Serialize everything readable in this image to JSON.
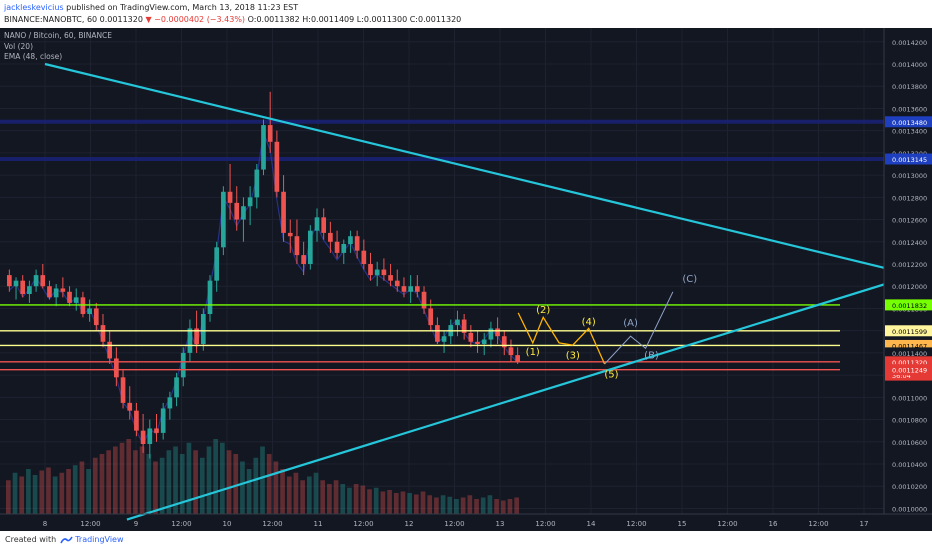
{
  "header": {
    "author": "jackleskevicius",
    "published": "published on TradingView.com, March 13, 2018 11:23 EST",
    "symbol": "BINANCE:NANOBTC, 60",
    "change": "▼ −0.0000402 (−3.43%)",
    "last": "0.0011320",
    "ohlc": "O:0.0011382 H:0.0011409 L:0.0011300 C:0.0011320"
  },
  "legend": {
    "pair": "NANO / Bitcoin, 60, BINANCE",
    "vol": "Vol (20)",
    "ema": "EMA (48, close)"
  },
  "footer": {
    "created": "Created with",
    "brand": "TradingView"
  },
  "colors": {
    "background": "#131722",
    "up": "#26a69a",
    "down": "#ef5350",
    "triangle": "#26c6da",
    "green_level": "#76ff03",
    "yellow_level": "#ffff8d",
    "red_level": "#ef5350",
    "blue_level": "#1a237e",
    "ema": "#283593",
    "wave_label": "#ffeb3b",
    "abc_label": "#90a4c8"
  },
  "chart_data": {
    "type": "candlestick",
    "x_axis_labels": [
      "8",
      "12:00",
      "9",
      "12:00",
      "10",
      "12:00",
      "11",
      "12:00",
      "12",
      "12:00",
      "13",
      "12:00",
      "14",
      "12:00",
      "15",
      "12:00",
      "16",
      "12:00",
      "17"
    ],
    "y_axis_labels": [
      "0.0014200",
      "0.0014000",
      "0.0013800",
      "0.0013600",
      "0.0013400",
      "0.0013200",
      "0.0013000",
      "0.0012800",
      "0.0012600",
      "0.0012400",
      "0.0012200",
      "0.0012000",
      "0.0011800",
      "0.0011600",
      "0.0011400",
      "0.0011200",
      "0.0011000",
      "0.0010800",
      "0.0010600",
      "0.0010400",
      "0.0010200",
      "0.0010000"
    ],
    "ylim": [
      0.000995,
      0.001427
    ],
    "price_levels": [
      {
        "label": "0.0013480",
        "value": 0.001348,
        "role": "blue"
      },
      {
        "label": "0.0013145",
        "value": 0.0013145,
        "role": "blue"
      },
      {
        "label": "0.0011832",
        "value": 0.0011832,
        "role": "green"
      },
      {
        "label": "0.0011599",
        "value": 0.0011599,
        "role": "yellow"
      },
      {
        "label": "0.0011467",
        "value": 0.0011467,
        "role": "orange"
      },
      {
        "label": "0.0011400",
        "value": 0.00114,
        "role": "plain"
      },
      {
        "label": "0.0011320",
        "value": 0.001132,
        "role": "red"
      },
      {
        "label": "36:04",
        "value": 0.00112,
        "role": "timer"
      },
      {
        "label": "0.0011249",
        "value": 0.0011249,
        "role": "red"
      }
    ],
    "triangle": {
      "upper": [
        [
          0.0,
          0.0014
        ],
        [
          19.1,
          0.00121
        ]
      ],
      "lower": [
        [
          1.8,
          0.00099
        ],
        [
          19.1,
          0.00121
        ]
      ]
    },
    "wave_labels": [
      {
        "text": "(1)",
        "x": 10.72,
        "y": 0.001138
      },
      {
        "text": "(2)",
        "x": 10.95,
        "y": 0.001176
      },
      {
        "text": "(3)",
        "x": 11.6,
        "y": 0.001135
      },
      {
        "text": "(4)",
        "x": 11.95,
        "y": 0.001165
      },
      {
        "text": "(5)",
        "x": 12.45,
        "y": 0.001118
      },
      {
        "text": "(A)",
        "x": 12.87,
        "y": 0.001164
      },
      {
        "text": "(B)",
        "x": 13.33,
        "y": 0.001135
      },
      {
        "text": "(C)",
        "x": 14.17,
        "y": 0.001204
      }
    ],
    "wave_path": [
      [
        10.4,
        0.001176
      ],
      [
        10.72,
        0.001149
      ],
      [
        10.95,
        0.001172
      ],
      [
        11.3,
        0.001149
      ],
      [
        11.6,
        0.001147
      ],
      [
        11.95,
        0.001162
      ],
      [
        12.3,
        0.00113
      ]
    ],
    "projection_path": [
      [
        12.3,
        0.00113
      ],
      [
        12.87,
        0.001155
      ],
      [
        13.2,
        0.001144
      ],
      [
        13.8,
        0.001195
      ]
    ],
    "ohlc": [
      [
        0.00121,
        0.001215,
        0.001195,
        0.0012
      ],
      [
        0.0012,
        0.001208,
        0.001188,
        0.001205
      ],
      [
        0.001205,
        0.00121,
        0.00119,
        0.001193
      ],
      [
        0.001193,
        0.001205,
        0.001185,
        0.0012
      ],
      [
        0.0012,
        0.001215,
        0.001195,
        0.00121
      ],
      [
        0.00121,
        0.00122,
        0.001198,
        0.0012
      ],
      [
        0.0012,
        0.001205,
        0.001188,
        0.00119
      ],
      [
        0.00119,
        0.001202,
        0.001182,
        0.001198
      ],
      [
        0.001198,
        0.001208,
        0.00119,
        0.001195
      ],
      [
        0.001195,
        0.0012,
        0.001182,
        0.001185
      ],
      [
        0.001185,
        0.001198,
        0.001178,
        0.00119
      ],
      [
        0.00119,
        0.001195,
        0.001172,
        0.001175
      ],
      [
        0.001175,
        0.001188,
        0.001168,
        0.00118
      ],
      [
        0.00118,
        0.001185,
        0.00116,
        0.001165
      ],
      [
        0.001165,
        0.001175,
        0.001145,
        0.00115
      ],
      [
        0.00115,
        0.00116,
        0.00113,
        0.001135
      ],
      [
        0.001135,
        0.001145,
        0.00111,
        0.001118
      ],
      [
        0.001118,
        0.001125,
        0.00109,
        0.001095
      ],
      [
        0.001095,
        0.00111,
        0.00108,
        0.001088
      ],
      [
        0.001088,
        0.001095,
        0.001065,
        0.00107
      ],
      [
        0.00107,
        0.001085,
        0.00105,
        0.001058
      ],
      [
        0.001058,
        0.00108,
        0.001045,
        0.001072
      ],
      [
        0.001072,
        0.001085,
        0.00106,
        0.001068
      ],
      [
        0.001068,
        0.001095,
        0.001062,
        0.00109
      ],
      [
        0.00109,
        0.001105,
        0.00108,
        0.0011
      ],
      [
        0.0011,
        0.001122,
        0.001092,
        0.001118
      ],
      [
        0.001118,
        0.001145,
        0.00111,
        0.00114
      ],
      [
        0.00114,
        0.00117,
        0.001132,
        0.001162
      ],
      [
        0.001162,
        0.001178,
        0.00114,
        0.001148
      ],
      [
        0.001148,
        0.00118,
        0.001142,
        0.001175
      ],
      [
        0.001175,
        0.00121,
        0.001168,
        0.001205
      ],
      [
        0.001205,
        0.00124,
        0.001195,
        0.001235
      ],
      [
        0.001235,
        0.00129,
        0.001228,
        0.001285
      ],
      [
        0.001285,
        0.00131,
        0.00126,
        0.001275
      ],
      [
        0.001275,
        0.00129,
        0.00125,
        0.00126
      ],
      [
        0.00126,
        0.00128,
        0.00124,
        0.001272
      ],
      [
        0.001272,
        0.00129,
        0.001255,
        0.00128
      ],
      [
        0.00128,
        0.00131,
        0.00127,
        0.001305
      ],
      [
        0.001305,
        0.00135,
        0.0013,
        0.001345
      ],
      [
        0.001345,
        0.001375,
        0.00132,
        0.00133
      ],
      [
        0.00133,
        0.00134,
        0.00128,
        0.001285
      ],
      [
        0.001285,
        0.0013,
        0.00124,
        0.001248
      ],
      [
        0.001248,
        0.00126,
        0.00123,
        0.001245
      ],
      [
        0.001245,
        0.00126,
        0.00122,
        0.001228
      ],
      [
        0.001228,
        0.00124,
        0.00121,
        0.00122
      ],
      [
        0.00122,
        0.001255,
        0.001215,
        0.00125
      ],
      [
        0.00125,
        0.00127,
        0.00124,
        0.001262
      ],
      [
        0.001262,
        0.00127,
        0.001242,
        0.001248
      ],
      [
        0.001248,
        0.001258,
        0.00123,
        0.00124
      ],
      [
        0.00124,
        0.00125,
        0.001225,
        0.00123
      ],
      [
        0.00123,
        0.001242,
        0.00122,
        0.001238
      ],
      [
        0.001238,
        0.00125,
        0.00123,
        0.001245
      ],
      [
        0.001245,
        0.00125,
        0.001225,
        0.001232
      ],
      [
        0.001232,
        0.001242,
        0.001215,
        0.00122
      ],
      [
        0.00122,
        0.00123,
        0.001205,
        0.00121
      ],
      [
        0.00121,
        0.001222,
        0.0012,
        0.001215
      ],
      [
        0.001215,
        0.001225,
        0.001205,
        0.00121
      ],
      [
        0.00121,
        0.00122,
        0.0012,
        0.001205
      ],
      [
        0.001205,
        0.001215,
        0.001195,
        0.0012
      ],
      [
        0.0012,
        0.001208,
        0.00119,
        0.001195
      ],
      [
        0.001195,
        0.00121,
        0.001185,
        0.0012
      ],
      [
        0.0012,
        0.00121,
        0.00119,
        0.001195
      ],
      [
        0.001195,
        0.0012,
        0.001175,
        0.00118
      ],
      [
        0.00118,
        0.001188,
        0.00116,
        0.001165
      ],
      [
        0.001165,
        0.001172,
        0.001148,
        0.00115
      ],
      [
        0.00115,
        0.00116,
        0.00114,
        0.001155
      ],
      [
        0.001155,
        0.00117,
        0.001148,
        0.001165
      ],
      [
        0.001165,
        0.001178,
        0.001155,
        0.00117
      ],
      [
        0.00117,
        0.001175,
        0.001152,
        0.001158
      ],
      [
        0.001158,
        0.001165,
        0.001145,
        0.00115
      ],
      [
        0.00115,
        0.00116,
        0.00114,
        0.001148
      ],
      [
        0.001148,
        0.001158,
        0.001138,
        0.001152
      ],
      [
        0.001152,
        0.001168,
        0.001145,
        0.001162
      ],
      [
        0.001162,
        0.001172,
        0.001148,
        0.001155
      ],
      [
        0.001155,
        0.00116,
        0.001138,
        0.001145
      ],
      [
        0.001145,
        0.001152,
        0.001132,
        0.001138
      ],
      [
        0.001138,
        0.001145,
        0.00113,
        0.001132
      ]
    ],
    "volume": [
      0.45,
      0.55,
      0.5,
      0.6,
      0.52,
      0.58,
      0.62,
      0.5,
      0.55,
      0.6,
      0.65,
      0.7,
      0.6,
      0.75,
      0.8,
      0.85,
      0.9,
      0.95,
      1.0,
      0.85,
      0.9,
      0.8,
      0.7,
      0.75,
      0.85,
      0.9,
      0.8,
      0.95,
      0.85,
      0.75,
      0.9,
      1.0,
      0.95,
      0.85,
      0.8,
      0.7,
      0.6,
      0.75,
      0.9,
      0.8,
      0.7,
      0.6,
      0.5,
      0.55,
      0.45,
      0.5,
      0.55,
      0.45,
      0.4,
      0.45,
      0.4,
      0.35,
      0.4,
      0.38,
      0.33,
      0.35,
      0.3,
      0.32,
      0.28,
      0.3,
      0.28,
      0.26,
      0.3,
      0.25,
      0.22,
      0.25,
      0.23,
      0.2,
      0.22,
      0.25,
      0.2,
      0.22,
      0.25,
      0.2,
      0.18,
      0.2,
      0.22
    ]
  }
}
